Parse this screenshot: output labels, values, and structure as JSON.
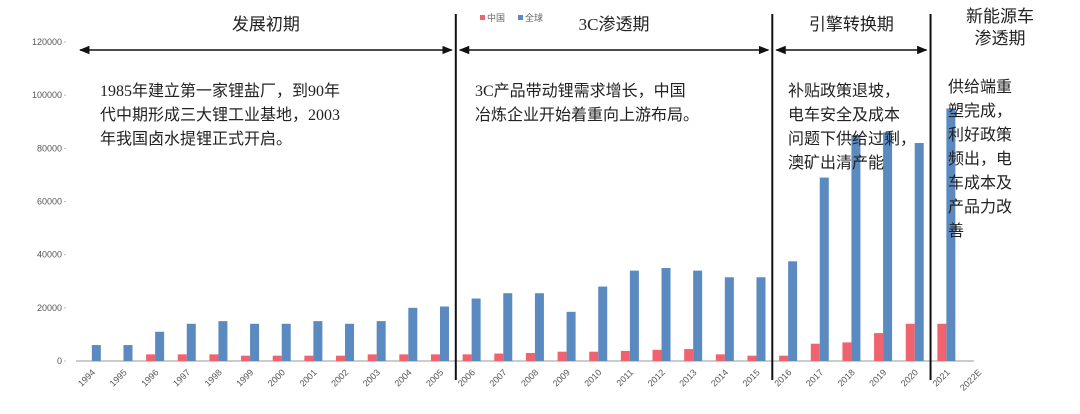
{
  "chart_data": {
    "type": "bar",
    "categories": [
      "1994",
      "1995",
      "1996",
      "1997",
      "1998",
      "1999",
      "2000",
      "2001",
      "2002",
      "2003",
      "2004",
      "2005",
      "2006",
      "2007",
      "2008",
      "2009",
      "2010",
      "2011",
      "2012",
      "2013",
      "2014",
      "2015",
      "2016",
      "2017",
      "2018",
      "2019",
      "2020",
      "2021",
      "2022E"
    ],
    "series": [
      {
        "name": "中国",
        "color": "#f0626e",
        "values": [
          null,
          null,
          2500,
          2500,
          2500,
          2000,
          2000,
          2000,
          2000,
          2500,
          2500,
          2500,
          2500,
          2800,
          3000,
          3500,
          3500,
          3800,
          4200,
          4500,
          2500,
          2000,
          2000,
          6500,
          7000,
          10500,
          14000,
          14000,
          null
        ]
      },
      {
        "name": "全球",
        "color": "#5a8ac0",
        "values": [
          6000,
          6000,
          11000,
          14000,
          15000,
          14000,
          14000,
          15000,
          14000,
          15000,
          20000,
          20500,
          23500,
          25500,
          25500,
          18500,
          28000,
          34000,
          35000,
          34000,
          31500,
          31500,
          37500,
          69000,
          85000,
          86000,
          82000,
          95000,
          null
        ]
      }
    ],
    "ylim": [
      0,
      120000
    ],
    "yticks": [
      0,
      20000,
      40000,
      60000,
      80000,
      100000,
      120000
    ],
    "phases": [
      {
        "title": [
          "发展初期"
        ],
        "text": [
          "1985年建立第一家锂盐厂，到90年",
          "代中期形成三大锂工业基地，2003",
          "年我国卤水提锂正式开启。"
        ]
      },
      {
        "title": [
          "3C渗透期"
        ],
        "text": [
          "3C产品带动锂需求增长，中国",
          "冶炼企业开始着重向上游布局。"
        ]
      },
      {
        "title": [
          "引擎转换期"
        ],
        "text": [
          "补贴政策退坡，",
          "电车安全及成本",
          "问题下供给过剩，",
          "澳矿出清产能"
        ]
      },
      {
        "title": [
          "新能源车",
          "渗透期"
        ],
        "text": [
          "供给端重",
          "塑完成，",
          "利好政策",
          "频出，电",
          "车成本及",
          "产品力改",
          "善"
        ]
      }
    ]
  }
}
